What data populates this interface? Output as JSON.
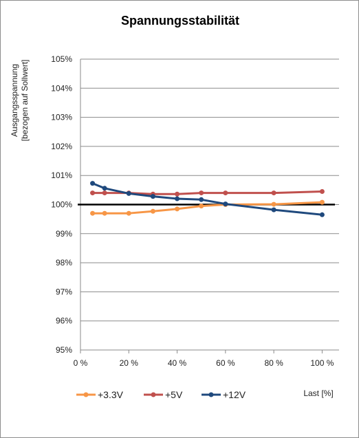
{
  "chart_data": {
    "type": "line",
    "title": "Spannungsstabilität",
    "xlabel": "Last [%]",
    "ylabel_lines": [
      "Ausgangsspannung",
      "[bezogen auf Sollwert]"
    ],
    "xlim": [
      0,
      107
    ],
    "ylim": [
      95,
      105
    ],
    "x_ticks": [
      0,
      20,
      40,
      60,
      80,
      100
    ],
    "x_tick_labels": [
      "0 %",
      "20 %",
      "40 %",
      "60 %",
      "80 %",
      "100 %"
    ],
    "y_ticks": [
      95,
      96,
      97,
      98,
      99,
      100,
      101,
      102,
      103,
      104,
      105
    ],
    "y_tick_labels": [
      "95%",
      "96%",
      "97%",
      "98%",
      "99%",
      "100%",
      "101%",
      "102%",
      "103%",
      "104%",
      "105%"
    ],
    "grid": "horizontal",
    "legend_position": "bottom",
    "reference_line": {
      "y": 100,
      "color": "#000000"
    },
    "x": [
      5,
      10,
      20,
      30,
      40,
      50,
      60,
      80,
      100
    ],
    "series": [
      {
        "name": "+3.3V",
        "color": "#f79646",
        "values": [
          99.7,
          99.7,
          99.7,
          99.77,
          99.85,
          99.95,
          100.0,
          100.01,
          100.08
        ]
      },
      {
        "name": "+5V",
        "color": "#c0504d",
        "values": [
          100.4,
          100.4,
          100.4,
          100.36,
          100.36,
          100.4,
          100.4,
          100.4,
          100.45
        ]
      },
      {
        "name": "+12V",
        "color": "#1f497d",
        "values": [
          100.73,
          100.56,
          100.38,
          100.28,
          100.2,
          100.17,
          100.02,
          99.82,
          99.65
        ]
      }
    ]
  }
}
